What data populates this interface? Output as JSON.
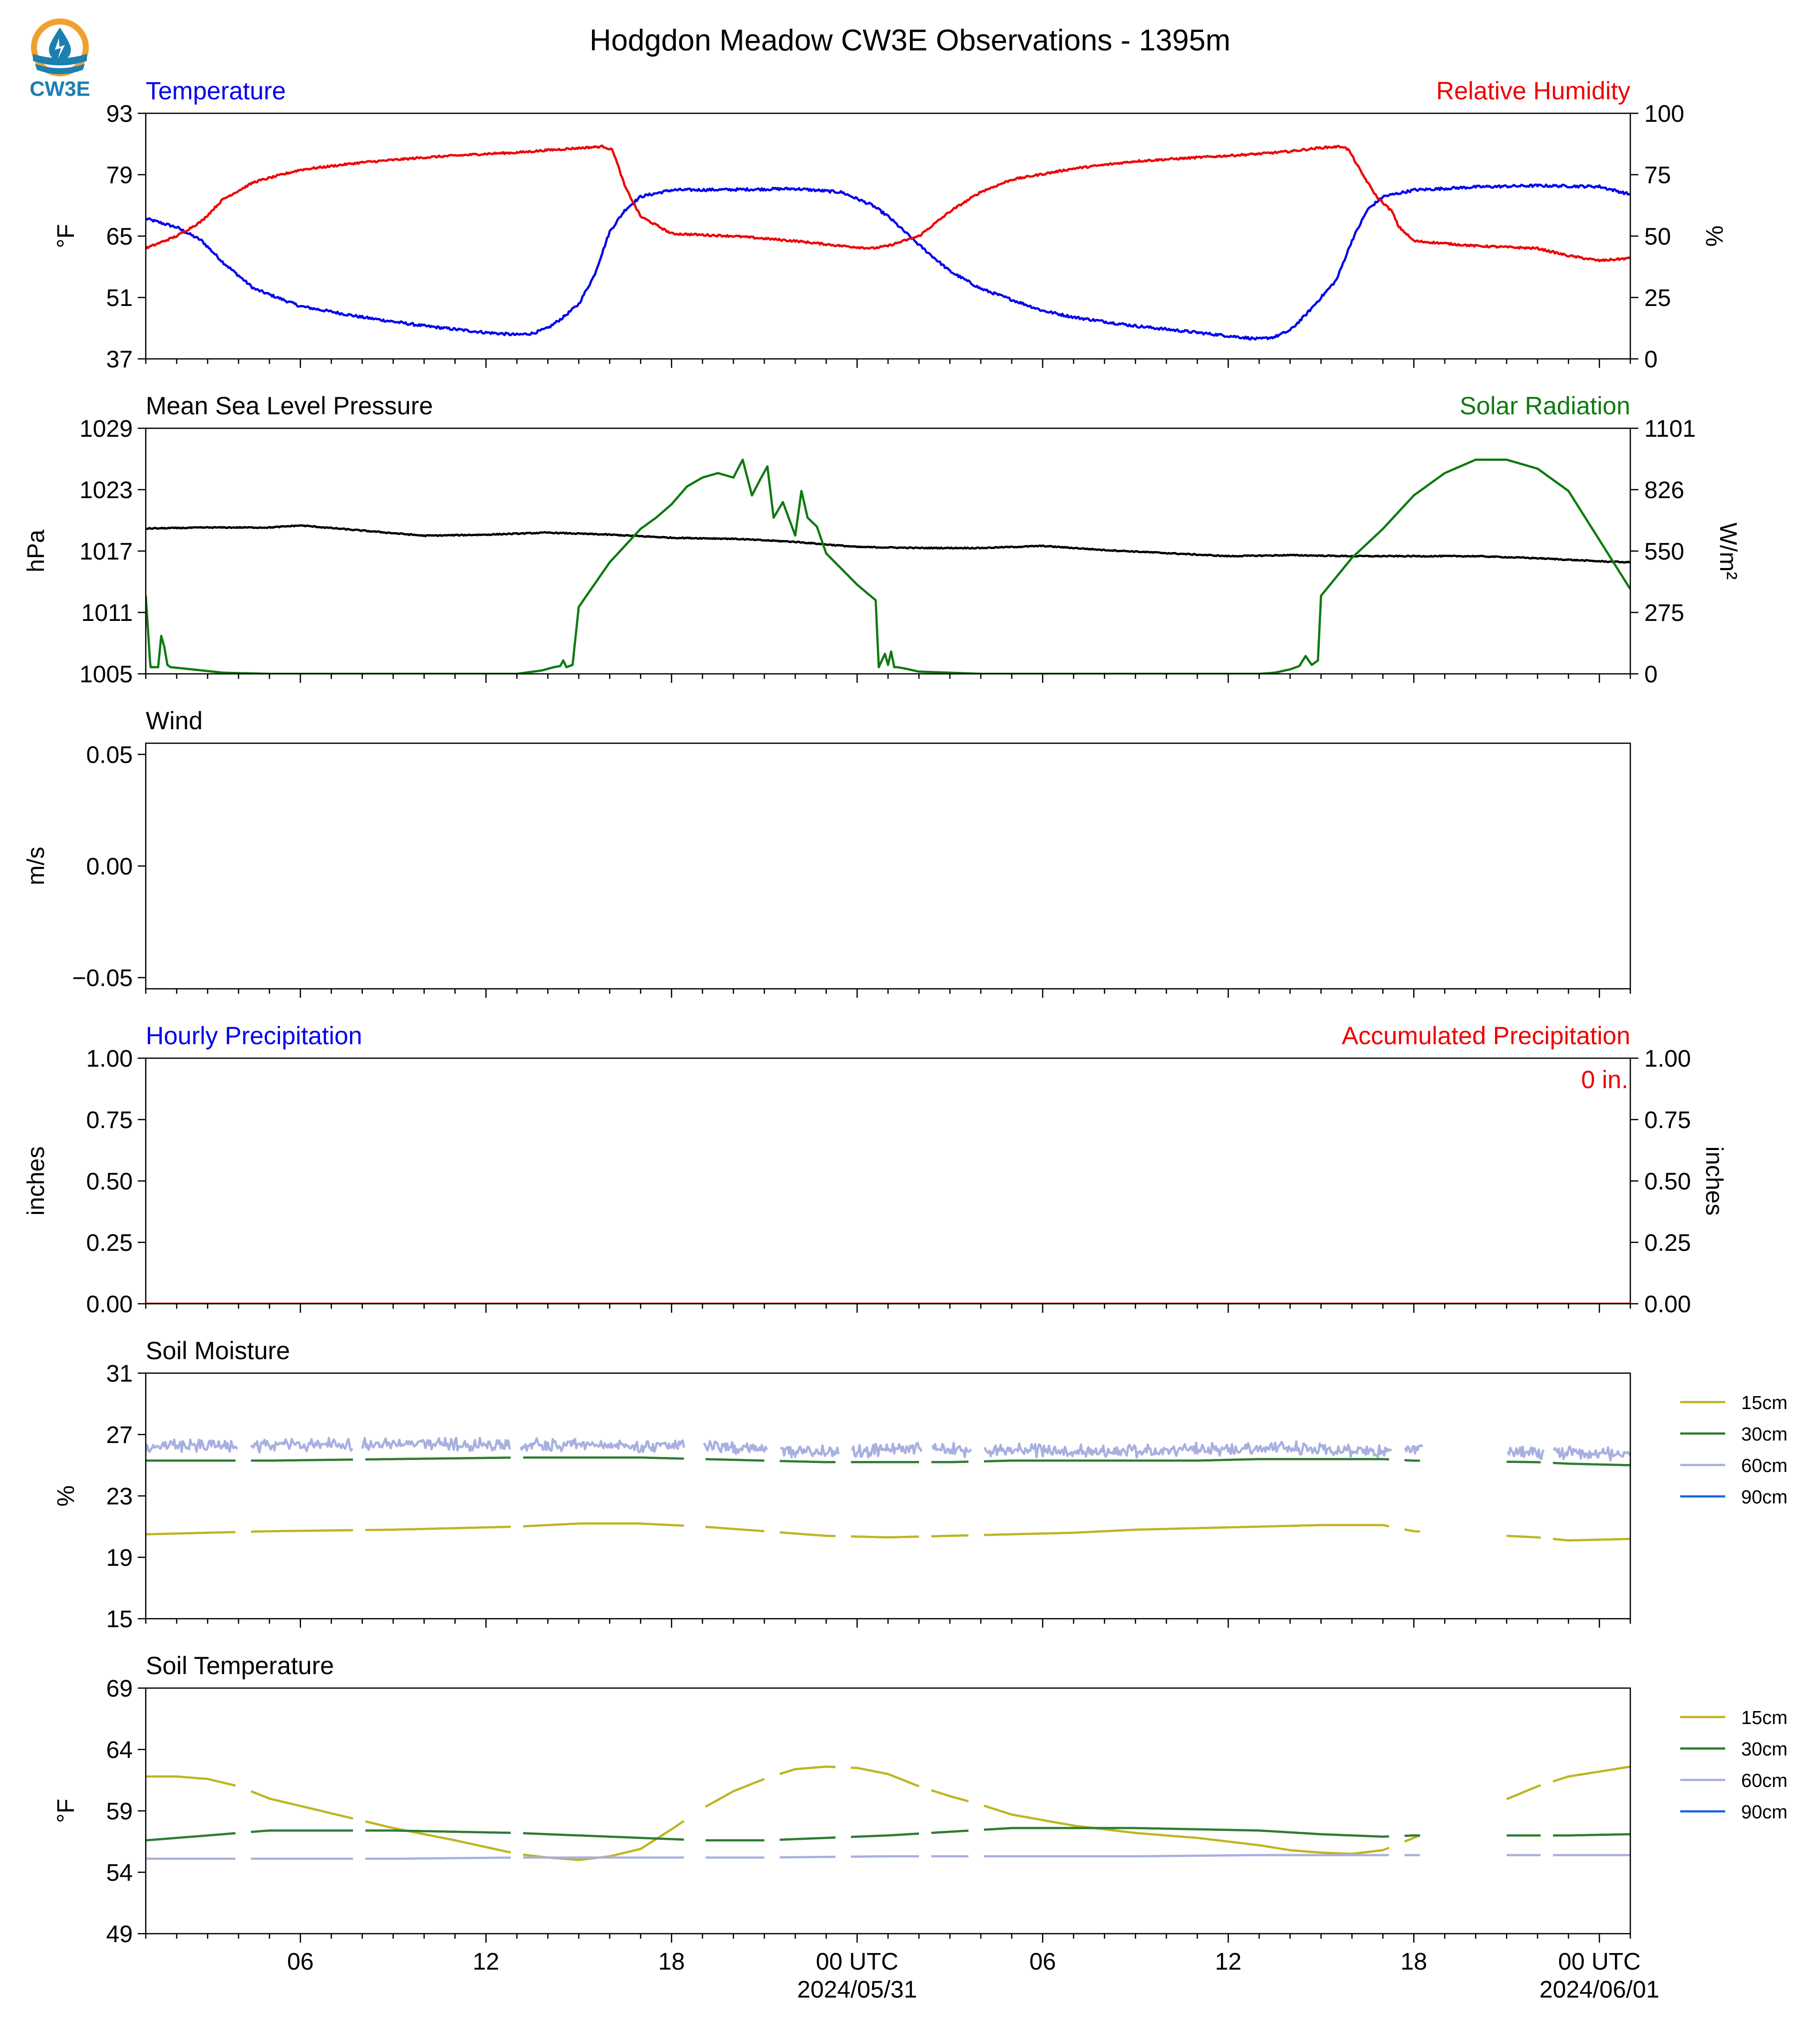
{
  "figure": {
    "title": "Hodgdon Meadow CW3E Observations - 1395m",
    "logo_text": "CW3E",
    "colors": {
      "blue": "#0000ee",
      "red": "#ee0000",
      "black": "#000000",
      "green": "#0f7a0f",
      "logo": "#1b7fb0",
      "logo_orange": "#f0a030"
    }
  },
  "time_axis": {
    "xlim": [
      0,
      48
    ],
    "major_ticks": [
      {
        "h": 5,
        "label": "06"
      },
      {
        "h": 11,
        "label": "12"
      },
      {
        "h": 17,
        "label": "18"
      },
      {
        "h": 23,
        "label": "00 UTC"
      },
      {
        "h": 29,
        "label": "06"
      },
      {
        "h": 35,
        "label": "12"
      },
      {
        "h": 41,
        "label": "18"
      },
      {
        "h": 47,
        "label": "00 UTC"
      }
    ],
    "date_labels": [
      {
        "h": 23,
        "label": "2024/05/31"
      },
      {
        "h": 47,
        "label": "2024/06/01"
      }
    ]
  },
  "chart_data": [
    {
      "id": "temp_rh",
      "type": "line",
      "left_title": "Temperature",
      "right_title": "Relative Humidity",
      "left_title_color": "blue",
      "right_title_color": "red",
      "ylabel": "°F",
      "ylabel_right": "%",
      "ylim": [
        37,
        93
      ],
      "yticks": [
        "37",
        "51",
        "65",
        "79",
        "93"
      ],
      "ylim_right": [
        0,
        100
      ],
      "yticks_right": [
        "0",
        "25",
        "50",
        "75",
        "100"
      ],
      "series": [
        {
          "color": "blue",
          "axis": "left",
          "noise": 0.3,
          "x": [
            0,
            1,
            1.8,
            2.5,
            3.5,
            5,
            7,
            9,
            11,
            12,
            12.5,
            13,
            13.5,
            14,
            14.5,
            15,
            15.5,
            16,
            17,
            19,
            21,
            22.5,
            23.5,
            24,
            25,
            26,
            27,
            28,
            29,
            30,
            32,
            34,
            36,
            36.5,
            37,
            37.5,
            38,
            38.5,
            39,
            39.5,
            40,
            41,
            43,
            45,
            46,
            47,
            48
          ],
          "y": [
            69,
            67,
            64,
            59,
            53,
            49,
            46.5,
            44.5,
            43,
            42.5,
            42.8,
            44,
            46.5,
            49.5,
            56,
            66,
            71,
            74,
            75.5,
            75.6,
            75.8,
            75,
            72,
            69.5,
            63,
            57,
            53,
            50.5,
            48,
            46.5,
            44.5,
            43,
            41.5,
            42,
            43.5,
            47,
            51,
            55,
            64,
            71,
            74,
            75.5,
            76.2,
            76.5,
            76.4,
            76.3,
            74.5
          ]
        },
        {
          "color": "red",
          "axis": "left_rh",
          "noise": 0.4,
          "x": [
            0,
            1,
            1.8,
            2.5,
            3.5,
            5,
            7,
            9,
            11,
            12,
            13,
            14.8,
            15.1,
            15.5,
            16,
            17,
            19,
            21,
            22.5,
            23.5,
            24,
            25,
            26,
            27,
            28,
            30,
            32,
            34,
            36,
            37,
            38,
            38.7,
            38.9,
            39.3,
            39.8,
            40.3,
            40.5,
            41,
            43,
            45,
            46,
            47,
            48
          ],
          "y": [
            45,
            50,
            56,
            65,
            72,
            77,
            80,
            82,
            83.5,
            84,
            85,
            86.5,
            85,
            70,
            58,
            51,
            50,
            48,
            46,
            45,
            46,
            50,
            60,
            68,
            73,
            77.5,
            80.5,
            82,
            83.5,
            84.5,
            86,
            86.5,
            85,
            76,
            66,
            60,
            54,
            48,
            46,
            45,
            42,
            40,
            41
          ]
        }
      ]
    },
    {
      "id": "mslp_solar",
      "type": "line",
      "left_title": "Mean Sea Level Pressure",
      "right_title": "Solar Radiation",
      "left_title_color": "black",
      "right_title_color": "green",
      "ylabel": "hPa",
      "ylabel_right": "W/m²",
      "ylim": [
        1005,
        1029
      ],
      "yticks": [
        "1005",
        "1011",
        "1017",
        "1023",
        "1029"
      ],
      "ylim_right": [
        0,
        1101
      ],
      "yticks_right": [
        "0",
        "275",
        "550",
        "826",
        "1101"
      ],
      "series": [
        {
          "color": "black",
          "axis": "left",
          "noise": 0.05,
          "x": [
            0,
            2,
            4,
            5,
            7,
            9,
            11,
            13,
            15,
            17,
            19,
            21,
            23,
            25,
            27,
            29,
            31,
            33,
            35,
            37,
            39,
            41,
            43,
            45,
            47,
            48
          ],
          "y": [
            1019.2,
            1019.3,
            1019.3,
            1019.5,
            1019,
            1018.5,
            1018.6,
            1018.8,
            1018.6,
            1018.3,
            1018.2,
            1017.9,
            1017.4,
            1017.3,
            1017.3,
            1017.5,
            1017.1,
            1016.8,
            1016.5,
            1016.6,
            1016.5,
            1016.5,
            1016.5,
            1016.3,
            1016,
            1015.9
          ]
        },
        {
          "color": "green",
          "axis": "right",
          "noise": 0,
          "x": [
            0,
            0.15,
            0.3,
            0.4,
            0.5,
            0.6,
            0.7,
            0.8,
            1.5,
            2.5,
            4,
            6,
            8,
            10,
            11,
            12,
            12.8,
            13.2,
            13.4,
            13.5,
            13.6,
            13.8,
            14,
            15,
            16,
            16.5,
            17,
            17.5,
            18,
            18.5,
            19,
            19.3,
            19.6,
            19.9,
            20.1,
            20.3,
            20.6,
            21,
            21.2,
            21.4,
            21.7,
            22,
            23,
            23.6,
            23.7,
            23.9,
            24,
            24.1,
            24.2,
            24.3,
            24.5,
            25,
            27,
            29,
            31,
            33,
            35,
            36,
            36.5,
            37,
            37.3,
            37.5,
            37.7,
            37.9,
            38,
            39,
            40,
            41,
            42,
            43,
            44,
            45,
            46,
            47,
            48
          ],
          "y": [
            350,
            30,
            30,
            30,
            170,
            120,
            40,
            30,
            20,
            5,
            0,
            0,
            0,
            0,
            0,
            0,
            15,
            30,
            35,
            60,
            30,
            40,
            300,
            500,
            650,
            700,
            760,
            840,
            880,
            900,
            880,
            960,
            800,
            880,
            930,
            700,
            770,
            620,
            820,
            700,
            660,
            540,
            400,
            330,
            30,
            90,
            40,
            100,
            30,
            30,
            25,
            10,
            0,
            0,
            0,
            0,
            0,
            0,
            5,
            20,
            35,
            80,
            40,
            60,
            350,
            520,
            650,
            800,
            900,
            960,
            960,
            920,
            820,
            600,
            380
          ]
        }
      ]
    },
    {
      "id": "wind",
      "type": "line",
      "left_title": "Wind",
      "left_title_color": "black",
      "ylabel": "m/s",
      "ylim": [
        -0.055,
        0.055
      ],
      "yticks": [
        "−0.05",
        "0.00",
        "0.05"
      ],
      "ytick_values": [
        -0.05,
        0.0,
        0.05
      ],
      "series": []
    },
    {
      "id": "precip",
      "type": "line",
      "left_title": "Hourly Precipitation",
      "right_title": "Accumulated Precipitation",
      "left_title_color": "blue",
      "right_title_color": "red",
      "ylabel": "inches",
      "ylabel_right": "inches",
      "ylim": [
        0,
        1
      ],
      "yticks": [
        "0.00",
        "0.25",
        "0.50",
        "0.75",
        "1.00"
      ],
      "ylim_right": [
        0,
        1
      ],
      "yticks_right": [
        "0.00",
        "0.25",
        "0.50",
        "0.75",
        "1.00"
      ],
      "annotation": "0 in.",
      "series": [
        {
          "color": "red",
          "axis": "right",
          "noise": 0,
          "x": [
            0,
            48
          ],
          "y": [
            0,
            0
          ]
        }
      ]
    },
    {
      "id": "soil_moisture",
      "type": "line",
      "left_title": "Soil Moisture",
      "left_title_color": "black",
      "ylabel": "%",
      "ylim": [
        15,
        31
      ],
      "yticks": [
        "15",
        "19",
        "23",
        "27",
        "31"
      ],
      "legend": [
        "15cm",
        "30cm",
        "60cm",
        "90cm"
      ],
      "legend_colors": [
        "#bfb520",
        "#2e7d32",
        "#a8b0e0",
        "#1a66dd"
      ],
      "gaps": [
        [
          3,
          3.4
        ],
        [
          6.7,
          7
        ],
        [
          11.8,
          12.1
        ],
        [
          17.4,
          18
        ],
        [
          20.1,
          20.5
        ],
        [
          22.4,
          22.8
        ],
        [
          25.1,
          25.4
        ],
        [
          26.7,
          27.1
        ],
        [
          40.3,
          40.7
        ],
        [
          41.3,
          44
        ],
        [
          45.2,
          45.5
        ]
      ],
      "series": [
        {
          "name": "15cm",
          "color": "#bfb520",
          "noise": 0,
          "x": [
            0,
            4,
            8,
            12,
            14,
            16,
            18,
            20,
            22,
            24,
            26,
            28,
            30,
            32,
            34,
            36,
            38,
            40,
            41,
            45,
            46,
            48
          ],
          "y": [
            20.5,
            20.7,
            20.8,
            21,
            21.2,
            21.2,
            21,
            20.7,
            20.4,
            20.3,
            20.4,
            20.5,
            20.6,
            20.8,
            20.9,
            21,
            21.1,
            21.1,
            20.7,
            20.3,
            20.1,
            20.2
          ]
        },
        {
          "name": "30cm",
          "color": "#2e7d32",
          "noise": 0,
          "x": [
            0,
            4,
            8,
            12,
            16,
            18,
            20,
            22,
            24,
            26,
            28,
            30,
            32,
            34,
            36,
            38,
            40,
            41,
            45,
            46,
            48
          ],
          "y": [
            25.3,
            25.3,
            25.4,
            25.5,
            25.5,
            25.4,
            25.3,
            25.2,
            25.2,
            25.2,
            25.3,
            25.3,
            25.3,
            25.3,
            25.4,
            25.4,
            25.4,
            25.3,
            25.2,
            25.1,
            25
          ]
        },
        {
          "name": "60cm",
          "color": "#a8b0e0",
          "noise": 0.25,
          "x": [
            0,
            4,
            8,
            12,
            14,
            16,
            18,
            20,
            22,
            24,
            26,
            28,
            30,
            32,
            34,
            36,
            38,
            40,
            41,
            45,
            46,
            48
          ],
          "y": [
            26.2,
            26.3,
            26.4,
            26.3,
            26.4,
            26.2,
            26.3,
            26,
            25.9,
            26,
            26,
            26,
            25.9,
            25.9,
            26,
            26.1,
            26.1,
            25.9,
            26,
            25.8,
            25.8,
            25.7
          ]
        }
      ]
    },
    {
      "id": "soil_temperature",
      "type": "line",
      "left_title": "Soil Temperature",
      "left_title_color": "black",
      "ylabel": "°F",
      "ylim": [
        49,
        69
      ],
      "yticks": [
        "49",
        "54",
        "59",
        "64",
        "69"
      ],
      "legend": [
        "15cm",
        "30cm",
        "60cm",
        "90cm"
      ],
      "legend_colors": [
        "#bfb520",
        "#2e7d32",
        "#a8b0e0",
        "#1a66dd"
      ],
      "gaps": [
        [
          3,
          3.4
        ],
        [
          6.7,
          7
        ],
        [
          11.8,
          12.1
        ],
        [
          17.4,
          18
        ],
        [
          20.1,
          20.5
        ],
        [
          22.4,
          22.8
        ],
        [
          25.1,
          25.4
        ],
        [
          26.7,
          27.1
        ],
        [
          40.3,
          40.7
        ],
        [
          41.3,
          44
        ],
        [
          45.2,
          45.5
        ]
      ],
      "series": [
        {
          "name": "15cm",
          "color": "#bfb520",
          "noise": 0,
          "x": [
            0,
            1,
            2,
            3,
            4,
            6,
            8,
            10,
            12,
            13,
            14,
            15,
            16,
            17,
            18,
            19,
            20,
            21,
            22,
            23,
            24,
            25,
            26,
            27,
            28,
            30,
            32,
            34,
            36,
            37,
            38,
            39,
            40,
            41,
            45,
            46,
            48
          ],
          "y": [
            61.8,
            61.8,
            61.6,
            61,
            60,
            58.8,
            57.6,
            56.6,
            55.5,
            55.2,
            55,
            55.3,
            55.9,
            57.5,
            59.2,
            60.6,
            61.6,
            62.4,
            62.6,
            62.5,
            62,
            61,
            60.2,
            59.5,
            58.7,
            57.8,
            57.2,
            56.8,
            56.2,
            55.8,
            55.6,
            55.5,
            55.8,
            56.8,
            61,
            61.8,
            62.6
          ]
        },
        {
          "name": "30cm",
          "color": "#2e7d32",
          "noise": 0,
          "x": [
            0,
            4,
            8,
            12,
            16,
            18,
            20,
            22,
            24,
            26,
            28,
            30,
            32,
            34,
            36,
            38,
            40,
            41,
            45,
            46,
            48
          ],
          "y": [
            56.6,
            57.4,
            57.4,
            57.2,
            56.8,
            56.6,
            56.6,
            56.8,
            57,
            57.3,
            57.6,
            57.6,
            57.6,
            57.5,
            57.4,
            57.1,
            56.9,
            57,
            57,
            57,
            57.1
          ]
        },
        {
          "name": "60cm",
          "color": "#a8b0e0",
          "noise": 0,
          "x": [
            0,
            4,
            8,
            12,
            16,
            20,
            24,
            28,
            32,
            36,
            40,
            41,
            45,
            48
          ],
          "y": [
            55.1,
            55.1,
            55.1,
            55.2,
            55.2,
            55.2,
            55.3,
            55.3,
            55.3,
            55.4,
            55.4,
            55.4,
            55.4,
            55.4
          ]
        }
      ]
    }
  ]
}
